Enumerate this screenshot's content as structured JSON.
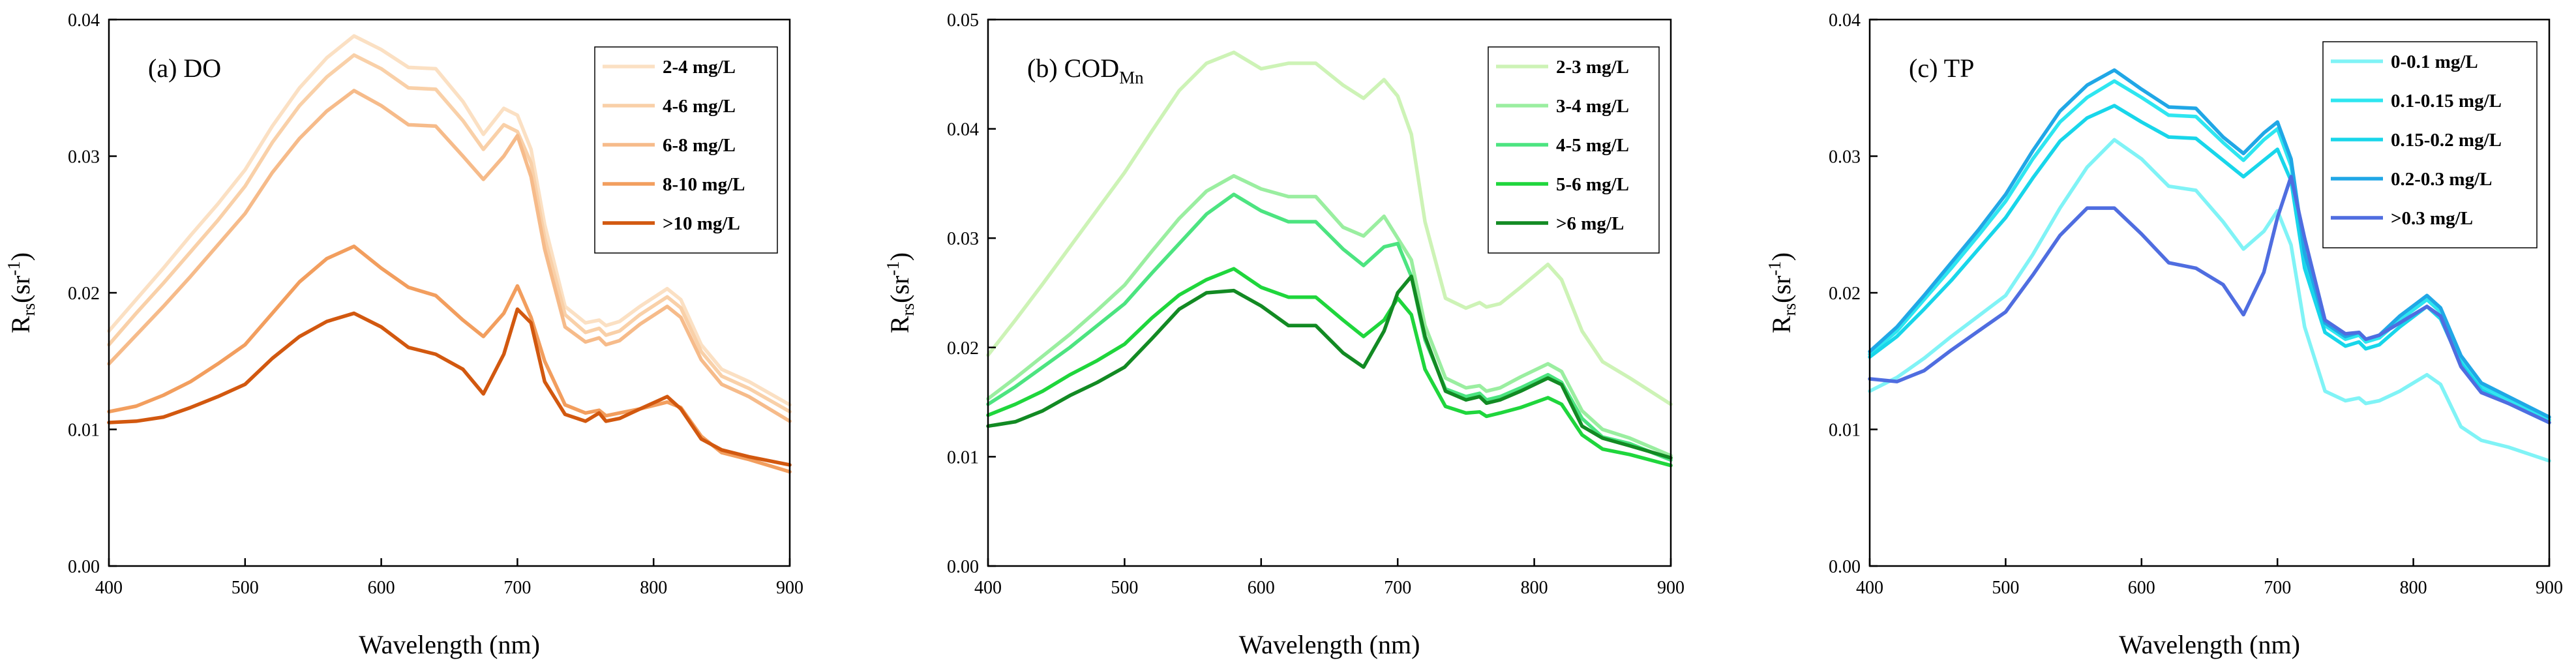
{
  "chart_data": [
    {
      "type": "line",
      "title": "(a) DO",
      "title_sub": "",
      "xlabel": "Wavelength (nm)",
      "ylabel_main": "R",
      "ylabel_sub": "rs",
      "ylabel_unit": "(sr",
      "ylabel_sup": "-1",
      "ylabel_close": ")",
      "xlim": [
        400,
        900
      ],
      "ylim": [
        0,
        0.04
      ],
      "xticks": [
        400,
        500,
        600,
        700,
        800,
        900
      ],
      "xtick_labels": [
        "400",
        "500",
        "600",
        "700",
        "800",
        "900"
      ],
      "yticks": [
        0,
        0.01,
        0.02,
        0.03,
        0.04
      ],
      "ytick_labels": [
        "0.00",
        "0.01",
        "0.02",
        "0.03",
        "0.04"
      ],
      "legend_position": "top-right",
      "x": [
        400,
        420,
        440,
        460,
        480,
        500,
        520,
        540,
        560,
        580,
        600,
        620,
        640,
        660,
        675,
        690,
        700,
        710,
        720,
        735,
        750,
        760,
        765,
        775,
        790,
        810,
        820,
        835,
        850,
        870,
        900
      ],
      "series": [
        {
          "name": "2-4 mg/L",
          "color": "#fbe0c3",
          "values": [
            0.0172,
            0.0195,
            0.0218,
            0.0242,
            0.0265,
            0.029,
            0.0322,
            0.035,
            0.0372,
            0.0388,
            0.0378,
            0.0365,
            0.0364,
            0.034,
            0.0316,
            0.0335,
            0.033,
            0.0305,
            0.025,
            0.019,
            0.0178,
            0.018,
            0.0176,
            0.0179,
            0.019,
            0.0203,
            0.0195,
            0.0162,
            0.0144,
            0.0135,
            0.0118
          ]
        },
        {
          "name": "4-6 mg/L",
          "color": "#f9d0a8",
          "values": [
            0.0162,
            0.0185,
            0.0207,
            0.023,
            0.0253,
            0.0278,
            0.031,
            0.0337,
            0.0358,
            0.0374,
            0.0364,
            0.035,
            0.0349,
            0.0326,
            0.0305,
            0.0323,
            0.0318,
            0.0295,
            0.024,
            0.0184,
            0.0171,
            0.0174,
            0.0169,
            0.0172,
            0.0184,
            0.0197,
            0.0189,
            0.0157,
            0.0139,
            0.013,
            0.0113
          ]
        },
        {
          "name": "6-8 mg/L",
          "color": "#f6bb8a",
          "values": [
            0.0148,
            0.0169,
            0.019,
            0.0212,
            0.0235,
            0.0258,
            0.0288,
            0.0313,
            0.0333,
            0.0348,
            0.0337,
            0.0323,
            0.0322,
            0.03,
            0.0283,
            0.03,
            0.0315,
            0.0285,
            0.0232,
            0.0175,
            0.0164,
            0.0167,
            0.0162,
            0.0165,
            0.0177,
            0.019,
            0.0182,
            0.0151,
            0.0133,
            0.0124,
            0.0106
          ]
        },
        {
          "name": "8-10 mg/L",
          "color": "#f29e5e",
          "values": [
            0.0113,
            0.0117,
            0.0125,
            0.0135,
            0.0148,
            0.0162,
            0.0185,
            0.0208,
            0.0225,
            0.0234,
            0.0218,
            0.0204,
            0.0198,
            0.018,
            0.0168,
            0.0185,
            0.0205,
            0.0182,
            0.015,
            0.0118,
            0.0112,
            0.0114,
            0.011,
            0.0112,
            0.0115,
            0.012,
            0.0116,
            0.0095,
            0.0083,
            0.0078,
            0.0069
          ]
        },
        {
          "name": ">10 mg/L",
          "color": "#d2580f",
          "values": [
            0.0105,
            0.0106,
            0.0109,
            0.0116,
            0.0124,
            0.0133,
            0.0152,
            0.0168,
            0.0179,
            0.0185,
            0.0175,
            0.016,
            0.0155,
            0.0144,
            0.0126,
            0.0155,
            0.0188,
            0.0178,
            0.0135,
            0.0111,
            0.0106,
            0.0112,
            0.0106,
            0.0108,
            0.0115,
            0.0124,
            0.0115,
            0.0093,
            0.0085,
            0.008,
            0.0074
          ]
        }
      ]
    },
    {
      "type": "line",
      "title": "(b) COD",
      "title_sub": "Mn",
      "xlabel": "Wavelength (nm)",
      "ylabel_main": "R",
      "ylabel_sub": "rs",
      "ylabel_unit": "(sr",
      "ylabel_sup": "-1",
      "ylabel_close": ")",
      "xlim": [
        400,
        900
      ],
      "ylim": [
        0,
        0.05
      ],
      "xticks": [
        400,
        500,
        600,
        700,
        800,
        900
      ],
      "xtick_labels": [
        "400",
        "500",
        "600",
        "700",
        "800",
        "900"
      ],
      "yticks": [
        0,
        0.01,
        0.02,
        0.03,
        0.04,
        0.05
      ],
      "ytick_labels": [
        "0.00",
        "0.01",
        "0.02",
        "0.03",
        "0.04",
        "0.05"
      ],
      "legend_position": "top-right",
      "x": [
        400,
        420,
        440,
        460,
        480,
        500,
        520,
        540,
        560,
        580,
        600,
        620,
        640,
        660,
        675,
        690,
        700,
        710,
        720,
        735,
        750,
        760,
        765,
        775,
        790,
        810,
        820,
        835,
        850,
        870,
        900
      ],
      "series": [
        {
          "name": "2-3 mg/L",
          "color": "#cdf3b6",
          "values": [
            0.0193,
            0.0225,
            0.0258,
            0.0292,
            0.0326,
            0.036,
            0.0398,
            0.0435,
            0.046,
            0.047,
            0.0455,
            0.046,
            0.046,
            0.044,
            0.0428,
            0.0445,
            0.043,
            0.0395,
            0.0315,
            0.0245,
            0.0236,
            0.0241,
            0.0237,
            0.024,
            0.0255,
            0.0276,
            0.0262,
            0.0215,
            0.0187,
            0.0172,
            0.0148
          ]
        },
        {
          "name": "3-4 mg/L",
          "color": "#9aeea0",
          "values": [
            0.0153,
            0.0172,
            0.0192,
            0.0212,
            0.0234,
            0.0257,
            0.0288,
            0.0318,
            0.0343,
            0.0357,
            0.0345,
            0.0338,
            0.0338,
            0.031,
            0.0302,
            0.032,
            0.03,
            0.028,
            0.022,
            0.0172,
            0.0163,
            0.0165,
            0.016,
            0.0163,
            0.0173,
            0.0185,
            0.0178,
            0.0142,
            0.0125,
            0.0117,
            0.0101
          ]
        },
        {
          "name": "4-5 mg/L",
          "color": "#4ce480",
          "values": [
            0.0148,
            0.0164,
            0.0182,
            0.02,
            0.022,
            0.024,
            0.0268,
            0.0295,
            0.0322,
            0.034,
            0.0325,
            0.0315,
            0.0315,
            0.029,
            0.0275,
            0.0292,
            0.0295,
            0.0265,
            0.0207,
            0.0162,
            0.0155,
            0.0158,
            0.0152,
            0.0155,
            0.0163,
            0.0175,
            0.0168,
            0.0135,
            0.0118,
            0.0112,
            0.0097
          ]
        },
        {
          "name": "5-6 mg/L",
          "color": "#1fd63c",
          "values": [
            0.0138,
            0.0148,
            0.016,
            0.0175,
            0.0188,
            0.0203,
            0.0227,
            0.0248,
            0.0262,
            0.0272,
            0.0255,
            0.0246,
            0.0246,
            0.0225,
            0.021,
            0.0225,
            0.0245,
            0.023,
            0.018,
            0.0146,
            0.014,
            0.0141,
            0.0137,
            0.014,
            0.0145,
            0.0154,
            0.0148,
            0.012,
            0.0107,
            0.0102,
            0.0092
          ]
        },
        {
          "name": ">6 mg/L",
          "color": "#128a23",
          "values": [
            0.0128,
            0.0132,
            0.0142,
            0.0156,
            0.0168,
            0.0182,
            0.0208,
            0.0235,
            0.025,
            0.0252,
            0.0238,
            0.022,
            0.022,
            0.0195,
            0.0182,
            0.0215,
            0.025,
            0.0265,
            0.021,
            0.016,
            0.0152,
            0.0155,
            0.0149,
            0.0152,
            0.016,
            0.0172,
            0.0166,
            0.0128,
            0.0117,
            0.011,
            0.0099
          ]
        }
      ]
    },
    {
      "type": "line",
      "title": "(c) TP",
      "title_sub": "",
      "xlabel": "Wavelength (nm)",
      "ylabel_main": "R",
      "ylabel_sub": "rs",
      "ylabel_unit": "(sr",
      "ylabel_sup": "-1",
      "ylabel_close": ")",
      "xlim": [
        400,
        900
      ],
      "ylim": [
        0,
        0.04
      ],
      "xticks": [
        400,
        500,
        600,
        700,
        800,
        900
      ],
      "xtick_labels": [
        "400",
        "500",
        "600",
        "700",
        "800",
        "900"
      ],
      "yticks": [
        0,
        0.01,
        0.02,
        0.03,
        0.04
      ],
      "ytick_labels": [
        "0.00",
        "0.01",
        "0.02",
        "0.03",
        "0.04"
      ],
      "legend_position": "top-right",
      "x": [
        400,
        420,
        440,
        460,
        480,
        500,
        520,
        540,
        560,
        580,
        600,
        620,
        640,
        660,
        675,
        690,
        700,
        710,
        720,
        735,
        750,
        760,
        765,
        775,
        790,
        810,
        820,
        835,
        850,
        870,
        900
      ],
      "series": [
        {
          "name": "0-0.1 mg/L",
          "color": "#80f3f6",
          "values": [
            0.0128,
            0.0138,
            0.0152,
            0.0168,
            0.0183,
            0.0198,
            0.0228,
            0.0262,
            0.0292,
            0.0312,
            0.0298,
            0.0278,
            0.0275,
            0.0252,
            0.0232,
            0.0245,
            0.026,
            0.0235,
            0.0175,
            0.0128,
            0.0121,
            0.0123,
            0.0119,
            0.0121,
            0.0128,
            0.014,
            0.0133,
            0.0102,
            0.0092,
            0.0087,
            0.0077
          ]
        },
        {
          "name": "0.1-0.15 mg/L",
          "color": "#2ee6f0",
          "values": [
            0.0155,
            0.0172,
            0.0195,
            0.0218,
            0.0242,
            0.0267,
            0.0298,
            0.0325,
            0.0343,
            0.0355,
            0.0343,
            0.033,
            0.0329,
            0.031,
            0.0297,
            0.0312,
            0.032,
            0.0293,
            0.0226,
            0.0176,
            0.0166,
            0.0169,
            0.0164,
            0.0167,
            0.018,
            0.0195,
            0.0186,
            0.0152,
            0.0132,
            0.0122,
            0.0107
          ]
        },
        {
          "name": "0.15-0.2 mg/L",
          "color": "#18d6ea",
          "values": [
            0.0153,
            0.0168,
            0.0188,
            0.0209,
            0.0232,
            0.0255,
            0.0284,
            0.0311,
            0.0328,
            0.0337,
            0.0325,
            0.0314,
            0.0313,
            0.0297,
            0.0285,
            0.0297,
            0.0305,
            0.0282,
            0.0218,
            0.0171,
            0.0161,
            0.0164,
            0.0159,
            0.0162,
            0.0175,
            0.019,
            0.0181,
            0.0148,
            0.0129,
            0.0119,
            0.0105
          ]
        },
        {
          "name": "0.2-0.3 mg/L",
          "color": "#20a7e6",
          "values": [
            0.0157,
            0.0175,
            0.0198,
            0.0222,
            0.0246,
            0.0272,
            0.0304,
            0.0333,
            0.0352,
            0.0363,
            0.0349,
            0.0336,
            0.0335,
            0.0314,
            0.0302,
            0.0317,
            0.0325,
            0.0298,
            0.0229,
            0.0178,
            0.0168,
            0.0171,
            0.0166,
            0.0169,
            0.0183,
            0.0198,
            0.0189,
            0.0154,
            0.0134,
            0.0124,
            0.0109
          ]
        },
        {
          "name": ">0.3 mg/L",
          "color": "#4f6de0",
          "values": [
            0.0137,
            0.0135,
            0.0143,
            0.0158,
            0.0172,
            0.0186,
            0.0213,
            0.0242,
            0.0262,
            0.0262,
            0.0243,
            0.0222,
            0.0218,
            0.0206,
            0.0184,
            0.0215,
            0.0255,
            0.0285,
            0.024,
            0.018,
            0.017,
            0.0171,
            0.0166,
            0.0169,
            0.0178,
            0.019,
            0.0183,
            0.0146,
            0.0127,
            0.0119,
            0.0105
          ]
        }
      ]
    }
  ]
}
